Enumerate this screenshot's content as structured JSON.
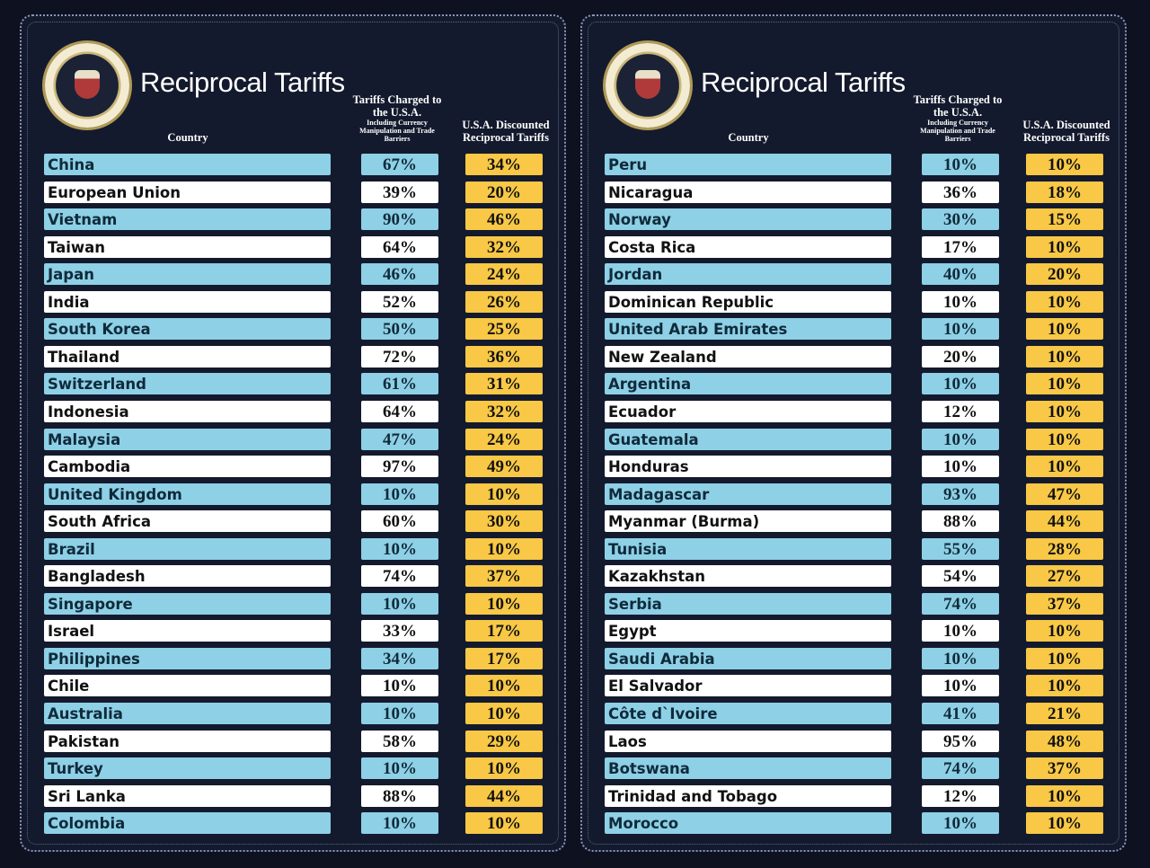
{
  "colors": {
    "background": "#141a2d",
    "row_blue": "#8ed0e6",
    "row_white": "#ffffff",
    "discount_yellow": "#f8c846"
  },
  "panels": [
    {
      "title": "Reciprocal Tariffs",
      "seal": "Seal of the President of the United States",
      "headers": {
        "country": "Country",
        "charged": "Tariffs Charged to the U.S.A.",
        "charged_note": "Including Currency Manipulation and Trade Barriers",
        "discounted": "U.S.A. Discounted Reciprocal Tariffs"
      },
      "rows": [
        {
          "country": "China",
          "charged": "67%",
          "discounted": "34%"
        },
        {
          "country": "European Union",
          "charged": "39%",
          "discounted": "20%"
        },
        {
          "country": "Vietnam",
          "charged": "90%",
          "discounted": "46%"
        },
        {
          "country": "Taiwan",
          "charged": "64%",
          "discounted": "32%"
        },
        {
          "country": "Japan",
          "charged": "46%",
          "discounted": "24%"
        },
        {
          "country": "India",
          "charged": "52%",
          "discounted": "26%"
        },
        {
          "country": "South Korea",
          "charged": "50%",
          "discounted": "25%"
        },
        {
          "country": "Thailand",
          "charged": "72%",
          "discounted": "36%"
        },
        {
          "country": "Switzerland",
          "charged": "61%",
          "discounted": "31%"
        },
        {
          "country": "Indonesia",
          "charged": "64%",
          "discounted": "32%"
        },
        {
          "country": "Malaysia",
          "charged": "47%",
          "discounted": "24%"
        },
        {
          "country": "Cambodia",
          "charged": "97%",
          "discounted": "49%"
        },
        {
          "country": "United Kingdom",
          "charged": "10%",
          "discounted": "10%"
        },
        {
          "country": "South Africa",
          "charged": "60%",
          "discounted": "30%"
        },
        {
          "country": "Brazil",
          "charged": "10%",
          "discounted": "10%"
        },
        {
          "country": "Bangladesh",
          "charged": "74%",
          "discounted": "37%"
        },
        {
          "country": "Singapore",
          "charged": "10%",
          "discounted": "10%"
        },
        {
          "country": "Israel",
          "charged": "33%",
          "discounted": "17%"
        },
        {
          "country": "Philippines",
          "charged": "34%",
          "discounted": "17%"
        },
        {
          "country": "Chile",
          "charged": "10%",
          "discounted": "10%"
        },
        {
          "country": "Australia",
          "charged": "10%",
          "discounted": "10%"
        },
        {
          "country": "Pakistan",
          "charged": "58%",
          "discounted": "29%"
        },
        {
          "country": "Turkey",
          "charged": "10%",
          "discounted": "10%"
        },
        {
          "country": "Sri Lanka",
          "charged": "88%",
          "discounted": "44%"
        },
        {
          "country": "Colombia",
          "charged": "10%",
          "discounted": "10%"
        }
      ]
    },
    {
      "title": "Reciprocal Tariffs",
      "seal": "Seal of the President of the United States",
      "headers": {
        "country": "Country",
        "charged": "Tariffs Charged to the U.S.A.",
        "charged_note": "Including Currency Manipulation and Trade Barriers",
        "discounted": "U.S.A. Discounted Reciprocal Tariffs"
      },
      "rows": [
        {
          "country": "Peru",
          "charged": "10%",
          "discounted": "10%"
        },
        {
          "country": "Nicaragua",
          "charged": "36%",
          "discounted": "18%"
        },
        {
          "country": "Norway",
          "charged": "30%",
          "discounted": "15%"
        },
        {
          "country": "Costa Rica",
          "charged": "17%",
          "discounted": "10%"
        },
        {
          "country": "Jordan",
          "charged": "40%",
          "discounted": "20%"
        },
        {
          "country": "Dominican Republic",
          "charged": "10%",
          "discounted": "10%"
        },
        {
          "country": "United Arab Emirates",
          "charged": "10%",
          "discounted": "10%"
        },
        {
          "country": "New Zealand",
          "charged": "20%",
          "discounted": "10%"
        },
        {
          "country": "Argentina",
          "charged": "10%",
          "discounted": "10%"
        },
        {
          "country": "Ecuador",
          "charged": "12%",
          "discounted": "10%"
        },
        {
          "country": "Guatemala",
          "charged": "10%",
          "discounted": "10%"
        },
        {
          "country": "Honduras",
          "charged": "10%",
          "discounted": "10%"
        },
        {
          "country": "Madagascar",
          "charged": "93%",
          "discounted": "47%"
        },
        {
          "country": "Myanmar (Burma)",
          "charged": "88%",
          "discounted": "44%"
        },
        {
          "country": "Tunisia",
          "charged": "55%",
          "discounted": "28%"
        },
        {
          "country": "Kazakhstan",
          "charged": "54%",
          "discounted": "27%"
        },
        {
          "country": "Serbia",
          "charged": "74%",
          "discounted": "37%"
        },
        {
          "country": "Egypt",
          "charged": "10%",
          "discounted": "10%"
        },
        {
          "country": "Saudi Arabia",
          "charged": "10%",
          "discounted": "10%"
        },
        {
          "country": "El Salvador",
          "charged": "10%",
          "discounted": "10%"
        },
        {
          "country": "Côte d`Ivoire",
          "charged": "41%",
          "discounted": "21%"
        },
        {
          "country": "Laos",
          "charged": "95%",
          "discounted": "48%"
        },
        {
          "country": "Botswana",
          "charged": "74%",
          "discounted": "37%"
        },
        {
          "country": "Trinidad and Tobago",
          "charged": "12%",
          "discounted": "10%"
        },
        {
          "country": "Morocco",
          "charged": "10%",
          "discounted": "10%"
        }
      ]
    }
  ]
}
